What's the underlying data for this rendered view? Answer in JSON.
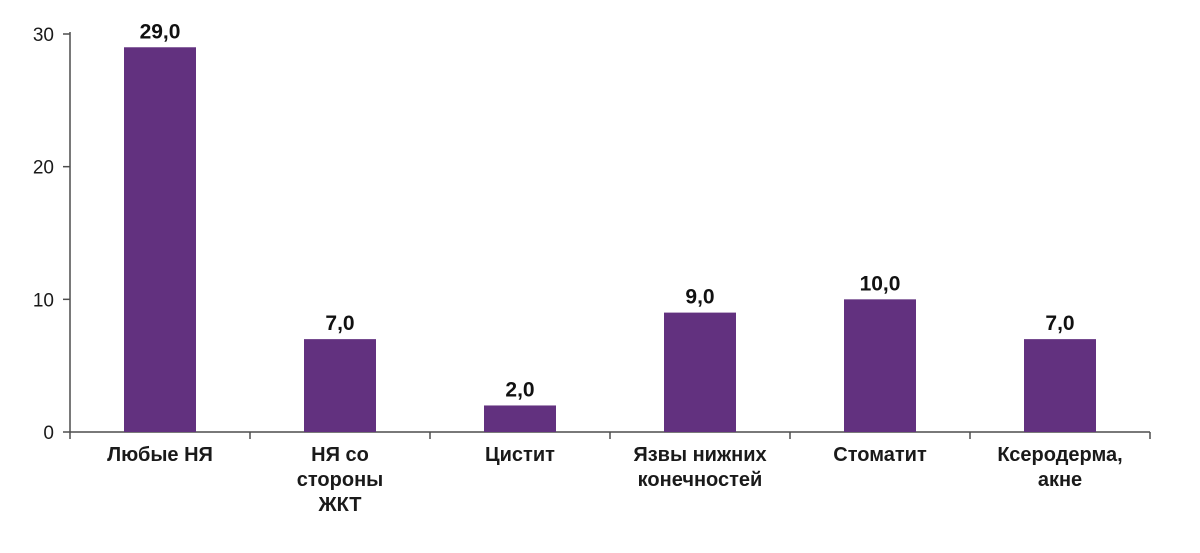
{
  "chart_data": {
    "type": "bar",
    "categories": [
      "Любые НЯ",
      "НЯ со стороны ЖКТ",
      "Цистит",
      "Язвы нижних конечностей",
      "Стоматит",
      "Ксеродерма, акне"
    ],
    "category_lines": [
      [
        "Любые НЯ"
      ],
      [
        "НЯ со",
        "стороны",
        "ЖКТ"
      ],
      [
        "Цистит"
      ],
      [
        "Язвы нижних",
        "конечностей"
      ],
      [
        "Стоматит"
      ],
      [
        "Ксеродерма,",
        "акне"
      ]
    ],
    "values": [
      29.0,
      7.0,
      2.0,
      9.0,
      10.0,
      7.0
    ],
    "data_labels": [
      "29,0",
      "7,0",
      "2,0",
      "9,0",
      "10,0",
      "7,0"
    ],
    "yticks": [
      0,
      10,
      20,
      30
    ],
    "ylim": [
      0,
      30
    ],
    "grid": false,
    "bar_color": "#62317F",
    "title": "",
    "xlabel": "",
    "ylabel": ""
  }
}
